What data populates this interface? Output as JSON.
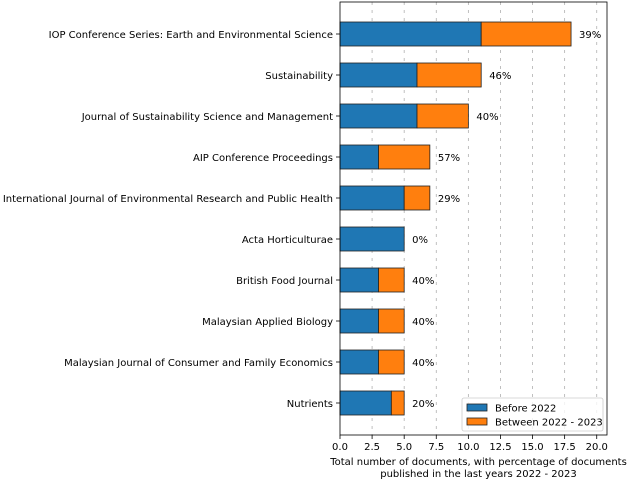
{
  "chart_data": {
    "type": "bar",
    "orientation": "horizontal",
    "stacked": true,
    "title": "",
    "xlabel": "Total number of documents, with percentage of documents\npublished in the last years 2022 - 2023",
    "ylabel": "",
    "xlim": [
      0,
      20.8
    ],
    "xticks": [
      "0.0",
      "2.5",
      "5.0",
      "7.5",
      "10.0",
      "12.5",
      "15.0",
      "17.5",
      "20.0"
    ],
    "xtick_values": [
      0,
      2.5,
      5,
      7.5,
      10,
      12.5,
      15,
      17.5,
      20
    ],
    "grid": "x-dashed",
    "legend_position": "lower-right",
    "categories": [
      "IOP Conference Series: Earth and Environmental Science",
      "Sustainability",
      "Journal of Sustainability Science and Management",
      "AIP Conference Proceedings",
      "International Journal of Environmental Research and Public Health",
      "Acta Horticulturae",
      "British Food Journal",
      "Malaysian Applied Biology",
      "Malaysian Journal of Consumer and Family Economics",
      "Nutrients"
    ],
    "series": [
      {
        "name": "Before 2022",
        "color": "#1f77b4",
        "values": [
          11,
          6,
          6,
          3,
          5,
          5,
          3,
          3,
          3,
          4
        ]
      },
      {
        "name": "Between 2022 - 2023",
        "color": "#ff7f0e",
        "values": [
          7,
          5,
          4,
          4,
          2,
          0,
          2,
          2,
          2,
          1
        ]
      }
    ],
    "data_labels": [
      "39%",
      "46%",
      "40%",
      "57%",
      "29%",
      "0%",
      "40%",
      "40%",
      "40%",
      "20%"
    ]
  }
}
